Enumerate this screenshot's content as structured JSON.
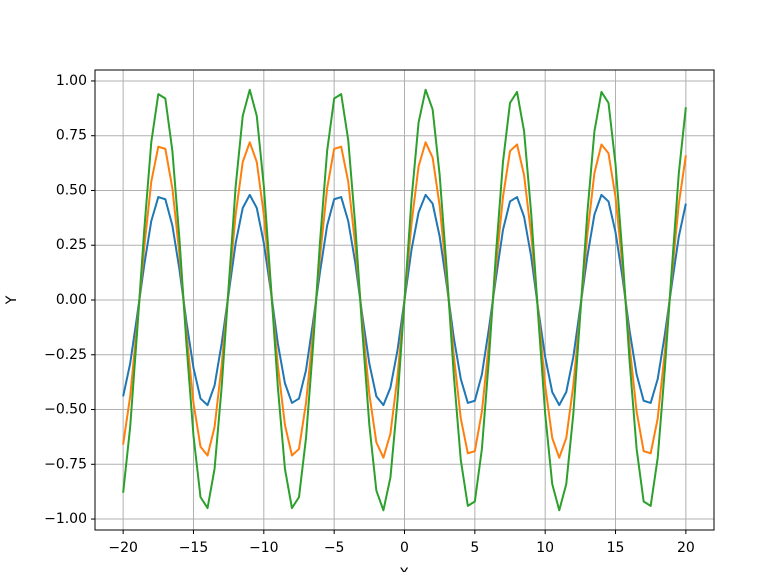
{
  "chart_data": {
    "type": "line",
    "x_label": "X",
    "y_label": "Y",
    "x": [
      -20,
      -19.5,
      -19,
      -18.5,
      -18,
      -17.5,
      -17,
      -16.5,
      -16,
      -15.5,
      -15,
      -14.5,
      -14,
      -13.5,
      -13,
      -12.5,
      -12,
      -11.5,
      -11,
      -10.5,
      -10,
      -9.5,
      -9,
      -8.5,
      -8,
      -7.5,
      -7,
      -6.5,
      -6,
      -5.5,
      -5,
      -4.5,
      -4,
      -3.5,
      -3,
      -2.5,
      -2,
      -1.5,
      -1,
      -0.5,
      0,
      0.5,
      1,
      1.5,
      2,
      2.5,
      3,
      3.5,
      4,
      4.5,
      5,
      5.5,
      6,
      6.5,
      7,
      7.5,
      8,
      8.5,
      9,
      9.5,
      10,
      10.5,
      11,
      11.5,
      12,
      12.5,
      13,
      13.5,
      14,
      14.5,
      15,
      15.5,
      16,
      16.5,
      17,
      17.5,
      18,
      18.5,
      19,
      19.5,
      20
    ],
    "series": [
      {
        "color": "#1f77b4",
        "values": [
          -0.44,
          -0.29,
          -0.07,
          0.16,
          0.36,
          0.47,
          0.46,
          0.34,
          0.14,
          -0.1,
          -0.31,
          -0.45,
          -0.48,
          -0.39,
          -0.2,
          0.03,
          0.26,
          0.42,
          0.48,
          0.42,
          0.26,
          0.04,
          -0.2,
          -0.38,
          -0.47,
          -0.45,
          -0.32,
          -0.1,
          0.13,
          0.34,
          0.46,
          0.47,
          0.36,
          0.17,
          -0.07,
          -0.29,
          -0.44,
          -0.48,
          -0.4,
          -0.23,
          0,
          0.23,
          0.4,
          0.48,
          0.44,
          0.29,
          0.07,
          -0.17,
          -0.36,
          -0.47,
          -0.46,
          -0.34,
          -0.13,
          0.1,
          0.32,
          0.45,
          0.47,
          0.38,
          0.2,
          -0.04,
          -0.26,
          -0.42,
          -0.48,
          -0.42,
          -0.26,
          -0.03,
          0.2,
          0.39,
          0.48,
          0.45,
          0.31,
          0.1,
          -0.14,
          -0.34,
          -0.46,
          -0.47,
          -0.36,
          -0.16,
          0.07,
          0.29,
          0.44
        ]
      },
      {
        "color": "#ff7f0e",
        "values": [
          -0.66,
          -0.44,
          -0.11,
          0.24,
          0.54,
          0.7,
          0.69,
          0.51,
          0.21,
          -0.15,
          -0.47,
          -0.67,
          -0.71,
          -0.58,
          -0.3,
          0.05,
          0.39,
          0.63,
          0.72,
          0.63,
          0.39,
          0.05,
          -0.3,
          -0.57,
          -0.71,
          -0.68,
          -0.47,
          -0.15,
          0.2,
          0.51,
          0.69,
          0.7,
          0.54,
          0.25,
          -0.1,
          -0.43,
          -0.65,
          -0.72,
          -0.61,
          -0.35,
          0,
          0.35,
          0.61,
          0.72,
          0.65,
          0.43,
          0.1,
          -0.25,
          -0.54,
          -0.7,
          -0.69,
          -0.51,
          -0.2,
          0.15,
          0.47,
          0.68,
          0.71,
          0.57,
          0.3,
          -0.05,
          -0.39,
          -0.63,
          -0.72,
          -0.63,
          -0.39,
          -0.05,
          0.3,
          0.58,
          0.71,
          0.67,
          0.47,
          0.15,
          -0.21,
          -0.51,
          -0.69,
          -0.7,
          -0.54,
          -0.24,
          0.11,
          0.44,
          0.66
        ]
      },
      {
        "color": "#2ca02c",
        "values": [
          -0.88,
          -0.58,
          -0.14,
          0.32,
          0.72,
          0.94,
          0.92,
          0.68,
          0.28,
          -0.2,
          -0.62,
          -0.9,
          -0.95,
          -0.77,
          -0.4,
          0.06,
          0.52,
          0.84,
          0.96,
          0.84,
          0.52,
          0.07,
          -0.4,
          -0.77,
          -0.95,
          -0.9,
          -0.63,
          -0.21,
          0.27,
          0.68,
          0.92,
          0.94,
          0.73,
          0.34,
          -0.14,
          -0.57,
          -0.87,
          -0.96,
          -0.81,
          -0.46,
          0,
          0.46,
          0.81,
          0.96,
          0.87,
          0.57,
          0.14,
          -0.34,
          -0.73,
          -0.94,
          -0.92,
          -0.68,
          -0.27,
          0.21,
          0.63,
          0.9,
          0.95,
          0.77,
          0.4,
          -0.07,
          -0.52,
          -0.84,
          -0.96,
          -0.84,
          -0.52,
          -0.06,
          0.4,
          0.77,
          0.95,
          0.9,
          0.62,
          0.2,
          -0.28,
          -0.68,
          -0.92,
          -0.94,
          -0.72,
          -0.32,
          0.14,
          0.58,
          0.88
        ]
      }
    ],
    "xlim": [
      -22,
      22
    ],
    "ylim": [
      -1.05,
      1.05
    ],
    "xticks": [
      {
        "value": -20,
        "label": "−20"
      },
      {
        "value": -15,
        "label": "−15"
      },
      {
        "value": -10,
        "label": "−10"
      },
      {
        "value": -5,
        "label": "−5"
      },
      0,
      5,
      10,
      15,
      20
    ],
    "yticks": [
      {
        "value": -1,
        "label": "−1.00"
      },
      {
        "value": -0.75,
        "label": "−0.75"
      },
      {
        "value": -0.5,
        "label": "−0.50"
      },
      {
        "value": -0.25,
        "label": "−0.25"
      },
      {
        "value": 0,
        "label": "0.00"
      },
      {
        "value": 0.25,
        "label": "0.25"
      },
      {
        "value": 0.5,
        "label": "0.50"
      },
      {
        "value": 0.75,
        "label": "0.75"
      },
      {
        "value": 1,
        "label": "1.00"
      }
    ],
    "grid": true
  }
}
